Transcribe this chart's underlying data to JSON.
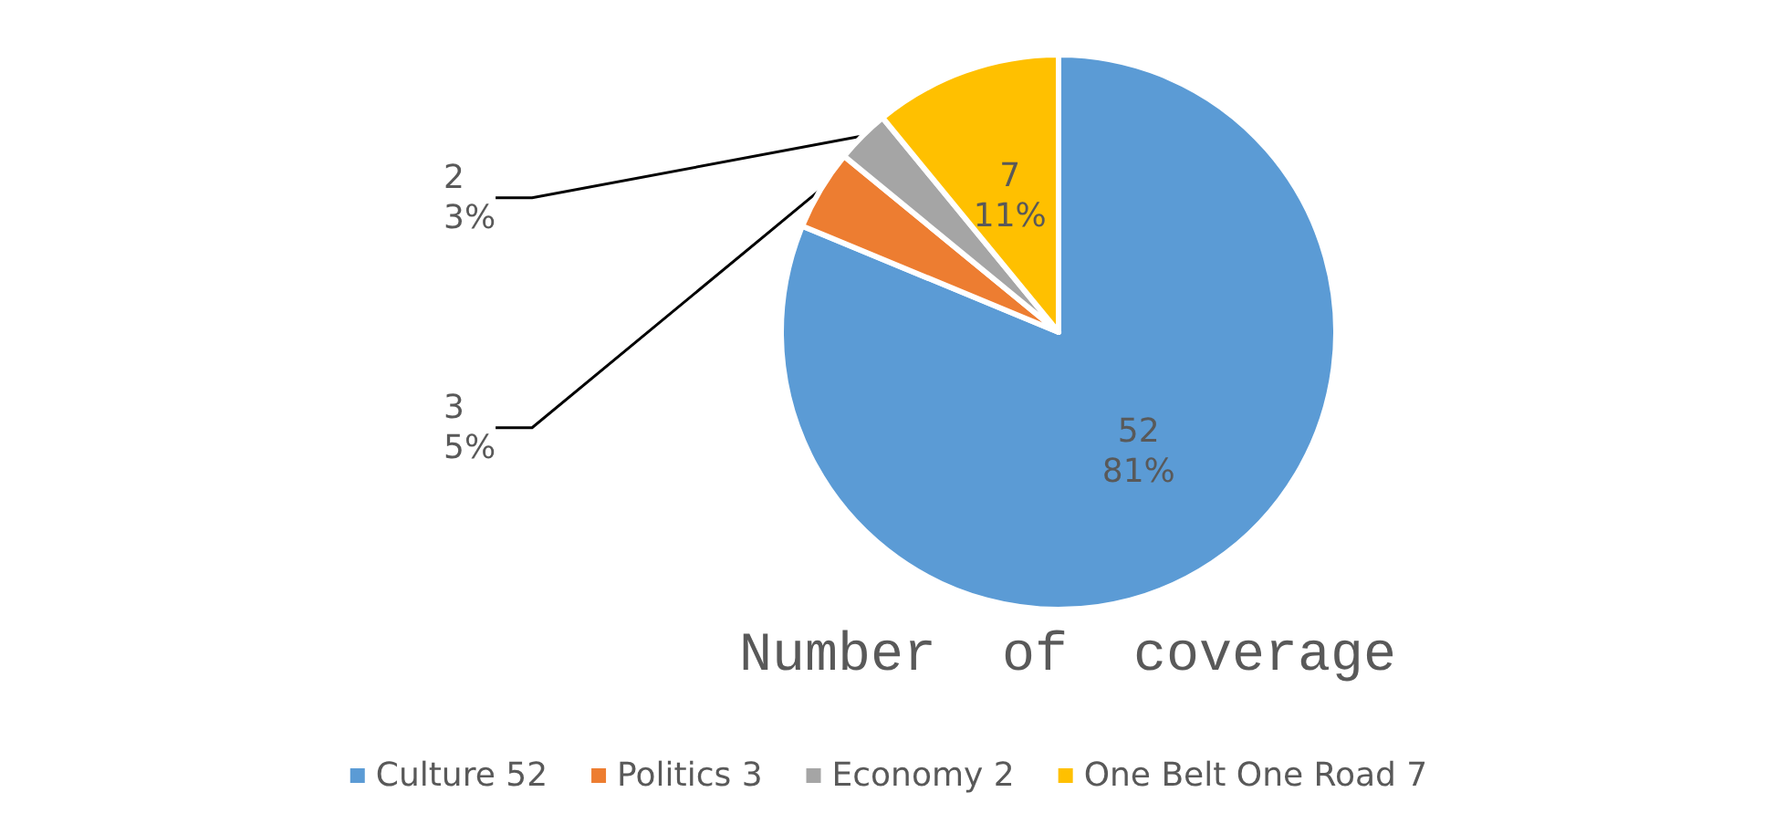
{
  "chart_data": {
    "type": "pie",
    "title": "Number  of  coverage",
    "categories": [
      "Culture 52",
      "Politics 3",
      "Economy 2",
      "One Belt One Road 7"
    ],
    "values": [
      52,
      3,
      2,
      7
    ],
    "colors": [
      "#5b9bd5",
      "#ed7d31",
      "#a5a5a5",
      "#ffc000"
    ],
    "value_labels": [
      "52\n81%",
      "3\n5%",
      "2\n3%",
      "7\n11%"
    ],
    "legend": "bottom"
  }
}
